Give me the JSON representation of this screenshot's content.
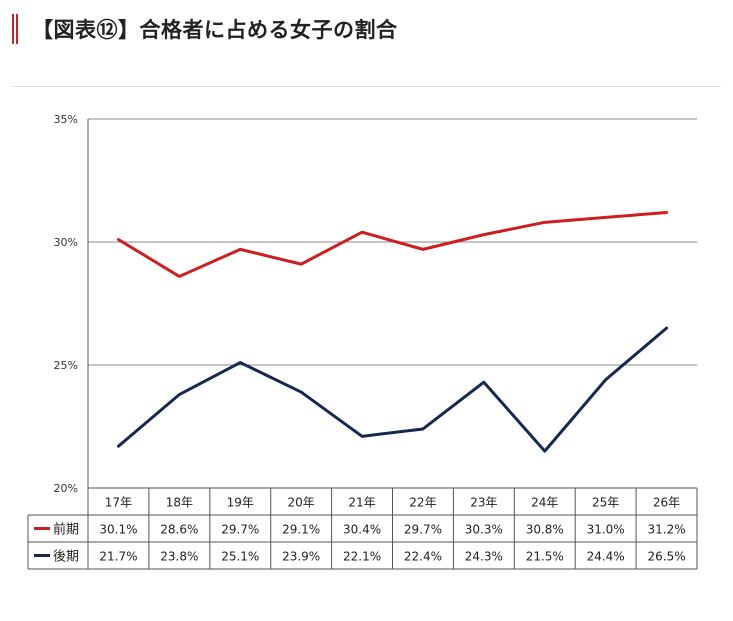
{
  "page": {
    "title": "【図表⑫】合格者に占める女子の割合"
  },
  "chart_data": {
    "type": "line",
    "title": "",
    "xlabel": "",
    "ylabel": "",
    "categories": [
      "17年",
      "18年",
      "19年",
      "20年",
      "21年",
      "22年",
      "23年",
      "24年",
      "25年",
      "26年"
    ],
    "ylim": [
      20,
      35
    ],
    "yticks": [
      20,
      25,
      30,
      35
    ],
    "ytick_labels": [
      "20%",
      "25%",
      "30%",
      "35%"
    ],
    "grid": true,
    "legend": "table-bottom",
    "series": [
      {
        "name": "前期",
        "color": "#cc1f1f",
        "values": [
          30.1,
          28.6,
          29.7,
          29.1,
          30.4,
          29.7,
          30.3,
          30.8,
          31.0,
          31.2
        ],
        "labels": [
          "30.1%",
          "28.6%",
          "29.7%",
          "29.1%",
          "30.4%",
          "29.7%",
          "30.3%",
          "30.8%",
          "31.0%",
          "31.2%"
        ]
      },
      {
        "name": "後期",
        "color": "#142850",
        "values": [
          21.7,
          23.8,
          25.1,
          23.9,
          22.1,
          22.4,
          24.3,
          21.5,
          24.4,
          26.5
        ],
        "labels": [
          "21.7%",
          "23.8%",
          "25.1%",
          "23.9%",
          "22.1%",
          "22.4%",
          "24.3%",
          "21.5%",
          "24.4%",
          "26.5%"
        ]
      }
    ]
  }
}
